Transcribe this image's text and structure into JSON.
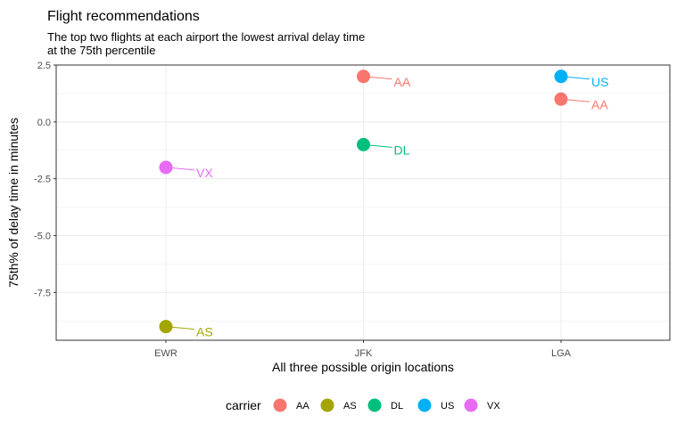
{
  "chart_data": {
    "type": "scatter",
    "title": "Flight recommendations",
    "subtitle_lines": [
      "The top two flights at each airport the lowest arrival delay time",
      "at the 75th percentile"
    ],
    "xlabel": "All three possible origin locations",
    "ylabel": "75th% of delay time in minutes",
    "categories": [
      "EWR",
      "JFK",
      "LGA"
    ],
    "ylim": [
      -9.6,
      2.5
    ],
    "yticks": [
      2.5,
      0.0,
      -2.5,
      -5.0,
      -7.5
    ],
    "ytick_labels": [
      "2.5",
      "0.0",
      "-2.5",
      "-5.0",
      "-7.5"
    ],
    "grid": true,
    "legend_title": "carrier",
    "legend_position": "bottom",
    "colors": {
      "AA": "#F8766D",
      "AS": "#A3A500",
      "DL": "#00BF7D",
      "US": "#00B0F6",
      "VX": "#E76BF3"
    },
    "carriers": [
      "AA",
      "AS",
      "DL",
      "US",
      "VX"
    ],
    "points": [
      {
        "x": "EWR",
        "y": -2.0,
        "carrier": "VX"
      },
      {
        "x": "EWR",
        "y": -9.0,
        "carrier": "AS"
      },
      {
        "x": "JFK",
        "y": 2.0,
        "carrier": "AA"
      },
      {
        "x": "JFK",
        "y": -1.0,
        "carrier": "DL"
      },
      {
        "x": "LGA",
        "y": 2.0,
        "carrier": "US"
      },
      {
        "x": "LGA",
        "y": 1.0,
        "carrier": "AA"
      }
    ]
  }
}
